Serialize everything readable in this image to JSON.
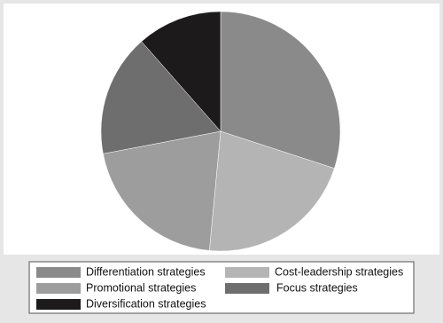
{
  "chart_data": {
    "type": "pie",
    "categories": [
      "Differentiation strategies",
      "Cost-leadership strategies",
      "Promotional strategies",
      "Focus strategies",
      "Diversification strategies"
    ],
    "values": [
      30,
      21.5,
      20.5,
      16.5,
      11.5
    ],
    "colors": [
      "#8a8a8a",
      "#b4b4b4",
      "#9d9d9d",
      "#6e6e6e",
      "#1c1a1a"
    ],
    "start_angle": 90,
    "direction": "clockwise"
  }
}
